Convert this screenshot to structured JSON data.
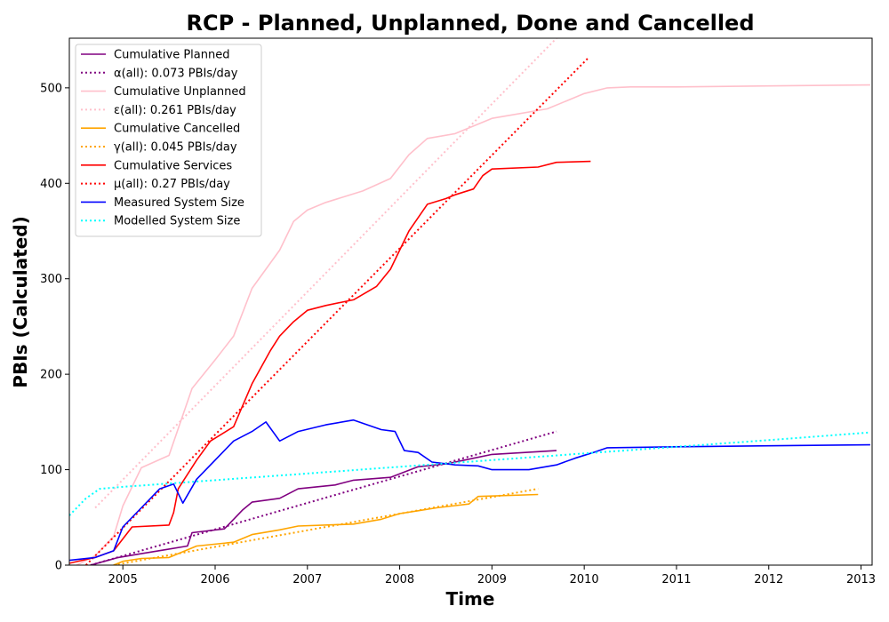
{
  "chart_data": {
    "type": "line",
    "title": "RCP - Planned, Unplanned, Done  and Cancelled",
    "xlabel": "Time",
    "ylabel": "PBIs (Calculated)",
    "xlim": [
      2004.42,
      2013.12
    ],
    "ylim": [
      0,
      552
    ],
    "xticks": [
      2005,
      2006,
      2007,
      2008,
      2009,
      2010,
      2011,
      2012,
      2013
    ],
    "xtick_labels": [
      "2005",
      "2006",
      "2007",
      "2008",
      "2009",
      "2010",
      "2011",
      "2012",
      "2013"
    ],
    "yticks": [
      0,
      100,
      200,
      300,
      400,
      500
    ],
    "ytick_labels": [
      "0",
      "100",
      "200",
      "300",
      "400",
      "500"
    ],
    "legend_position": "top-left",
    "series": [
      {
        "name": "Cumulative Planned",
        "color": "#800080",
        "style": "solid",
        "x": [
          2004.65,
          2004.8,
          2004.95,
          2005.2,
          2005.45,
          2005.7,
          2005.75,
          2006.1,
          2006.2,
          2006.3,
          2006.4,
          2006.7,
          2006.9,
          2007.3,
          2007.5,
          2007.9,
          2008.2,
          2008.5,
          2008.8,
          2009.0,
          2009.7
        ],
        "y": [
          0,
          4,
          8,
          12,
          16,
          20,
          34,
          38,
          48,
          58,
          66,
          70,
          80,
          84,
          89,
          92,
          103,
          106,
          112,
          116,
          120
        ]
      },
      {
        "name": "α(all): 0.073 PBIs/day",
        "color": "#800080",
        "style": "dotted",
        "x": [
          2004.65,
          2009.7
        ],
        "y": [
          0,
          140
        ]
      },
      {
        "name": "Cumulative Unplanned",
        "color": "#ffc0cb",
        "style": "solid",
        "x": [
          2004.5,
          2004.7,
          2004.9,
          2005.0,
          2005.1,
          2005.2,
          2005.5,
          2005.75,
          2006.0,
          2006.2,
          2006.4,
          2006.7,
          2006.85,
          2007.0,
          2007.2,
          2007.6,
          2007.9,
          2008.1,
          2008.3,
          2008.6,
          2009.0,
          2009.6,
          2010.0,
          2010.25,
          2010.5,
          2011.0,
          2012.0,
          2013.1
        ],
        "y": [
          0,
          10,
          30,
          62,
          82,
          102,
          115,
          185,
          215,
          240,
          290,
          330,
          360,
          372,
          380,
          392,
          405,
          430,
          447,
          452,
          468,
          478,
          494,
          500,
          501,
          501,
          502,
          503
        ]
      },
      {
        "name": "ε(all): 0.261 PBIs/day",
        "color": "#ffc0cb",
        "style": "dotted",
        "x": [
          2004.7,
          2009.7
        ],
        "y": [
          60,
          552
        ]
      },
      {
        "name": "Cumulative Cancelled",
        "color": "#ffa500",
        "style": "solid",
        "x": [
          2004.9,
          2005.0,
          2005.2,
          2005.5,
          2005.8,
          2006.2,
          2006.4,
          2006.7,
          2006.9,
          2007.5,
          2007.8,
          2008.0,
          2008.2,
          2008.4,
          2008.75,
          2008.85,
          2009.5
        ],
        "y": [
          0,
          4,
          7,
          8,
          20,
          24,
          32,
          37,
          41,
          43,
          48,
          54,
          57,
          60,
          64,
          72,
          74
        ]
      },
      {
        "name": "γ(all): 0.045 PBIs/day",
        "color": "#ffa500",
        "style": "dotted",
        "x": [
          2004.9,
          2009.5
        ],
        "y": [
          0,
          80
        ]
      },
      {
        "name": "Cumulative Services",
        "color": "#ff0000",
        "style": "solid",
        "x": [
          2004.42,
          2004.7,
          2004.9,
          2005.1,
          2005.5,
          2005.55,
          2005.6,
          2005.8,
          2005.95,
          2006.2,
          2006.4,
          2006.6,
          2006.7,
          2006.85,
          2007.0,
          2007.2,
          2007.5,
          2007.75,
          2007.9,
          2008.1,
          2008.3,
          2008.5,
          2008.6,
          2008.8,
          2008.9,
          2009.0,
          2009.5,
          2009.7,
          2010.07
        ],
        "y": [
          2,
          8,
          15,
          40,
          42,
          55,
          80,
          110,
          130,
          145,
          190,
          225,
          240,
          255,
          267,
          272,
          278,
          292,
          310,
          350,
          378,
          384,
          388,
          394,
          408,
          415,
          417,
          422,
          423
        ]
      },
      {
        "name": "μ(all): 0.27 PBIs/day",
        "color": "#ff0000",
        "style": "dotted",
        "x": [
          2004.6,
          2010.05
        ],
        "y": [
          0,
          532
        ]
      },
      {
        "name": "Measured System Size",
        "color": "#0000ff",
        "style": "solid",
        "x": [
          2004.42,
          2004.7,
          2004.9,
          2005.0,
          2005.2,
          2005.4,
          2005.55,
          2005.65,
          2005.8,
          2006.0,
          2006.2,
          2006.4,
          2006.55,
          2006.7,
          2006.9,
          2007.2,
          2007.5,
          2007.8,
          2007.95,
          2008.05,
          2008.2,
          2008.35,
          2008.6,
          2008.85,
          2009.0,
          2009.4,
          2009.7,
          2009.9,
          2010.1,
          2010.25,
          2011.0,
          2012.0,
          2013.1
        ],
        "y": [
          5,
          8,
          15,
          40,
          60,
          80,
          85,
          65,
          90,
          110,
          130,
          140,
          150,
          130,
          140,
          147,
          152,
          142,
          140,
          120,
          118,
          108,
          105,
          104,
          100,
          100,
          105,
          112,
          118,
          123,
          124,
          125,
          126
        ]
      },
      {
        "name": "Modelled System Size",
        "color": "#00ffff",
        "style": "dotted",
        "x": [
          2004.42,
          2004.6,
          2004.75,
          2005.0,
          2006.0,
          2007.0,
          2008.0,
          2009.0,
          2010.0,
          2011.0,
          2012.0,
          2013.1
        ],
        "y": [
          52,
          70,
          80,
          82,
          89,
          96,
          103,
          110,
          117,
          124,
          131,
          139
        ]
      }
    ]
  }
}
